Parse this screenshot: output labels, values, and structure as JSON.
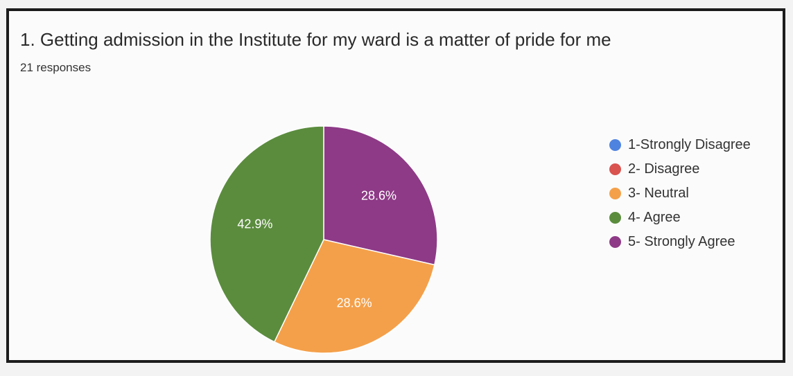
{
  "title": "1. Getting admission in the Institute for my ward is a matter of pride for me",
  "responses": "21 responses",
  "chart_data": {
    "type": "pie",
    "categories": [
      "1-Strongly Disagree",
      "2- Disagree",
      "3- Neutral",
      "4- Agree",
      "5- Strongly Agree"
    ],
    "values": [
      0,
      0,
      28.6,
      42.9,
      28.6
    ],
    "labels": [
      "",
      "",
      "28.6%",
      "42.9%",
      "28.6%"
    ],
    "colors": [
      "#4f83e0",
      "#d9534f",
      "#f4a04a",
      "#5b8c3e",
      "#8e3a87"
    ],
    "legend_position": "right"
  }
}
